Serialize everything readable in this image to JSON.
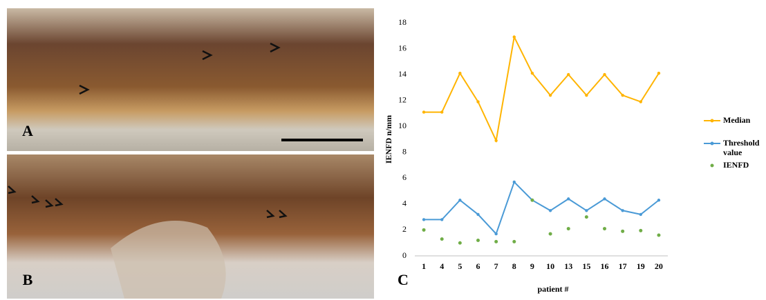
{
  "panels": {
    "a_label": "A",
    "b_label": "B"
  },
  "chart_data": {
    "type": "line",
    "panel_label": "C",
    "x_label": "patient #",
    "y_label": "IENFD n/mm",
    "categories": [
      "1",
      "4",
      "5",
      "6",
      "7",
      "8",
      "9",
      "10",
      "13",
      "15",
      "16",
      "17",
      "19",
      "20"
    ],
    "series": [
      {
        "name": "Median",
        "color": "#ffb400",
        "mode": "lines+markers",
        "values": [
          11.1,
          11.1,
          14.1,
          11.9,
          8.9,
          16.9,
          14.1,
          12.4,
          14.0,
          12.4,
          14.0,
          12.4,
          11.9,
          14.1
        ]
      },
      {
        "name": "Threshold value",
        "color": "#4a9ad6",
        "mode": "lines+markers",
        "values": [
          2.8,
          2.8,
          4.3,
          3.2,
          1.7,
          5.7,
          4.3,
          3.5,
          4.4,
          3.5,
          4.4,
          3.5,
          3.2,
          4.3
        ]
      },
      {
        "name": "IENFD",
        "color": "#70ad47",
        "mode": "markers",
        "values": [
          2.0,
          1.3,
          1.0,
          1.2,
          1.1,
          1.1,
          4.3,
          1.7,
          2.1,
          3.0,
          2.1,
          1.9,
          1.95,
          1.6
        ]
      }
    ],
    "ylim": [
      0,
      18
    ],
    "yticks": [
      0,
      2,
      4,
      6,
      8,
      10,
      12,
      14,
      16,
      18
    ],
    "grid": false,
    "legend": "right"
  }
}
